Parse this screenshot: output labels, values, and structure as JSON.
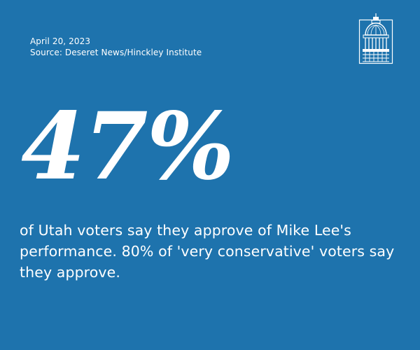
{
  "card": {
    "date": "April 20, 2023",
    "source": "Source: Deseret News/Hinckley Institute",
    "stat": "47%",
    "statement": "of Utah voters say they approve of Mike Lee's performance. 80% of 'very conservative' voters say they approve."
  },
  "logo": {
    "icon": "capitol-dome-icon"
  },
  "colors": {
    "background": "#1e73ad",
    "text": "#ffffff"
  }
}
